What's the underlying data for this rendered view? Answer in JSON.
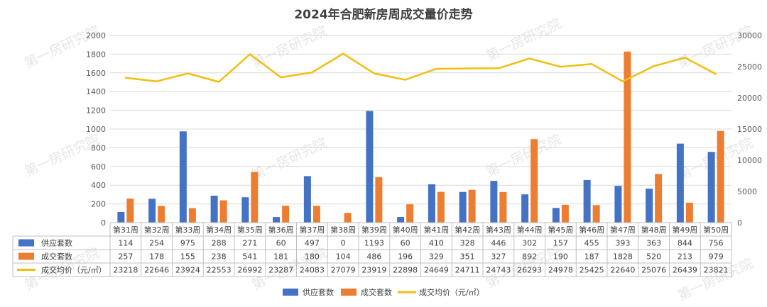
{
  "chart_data": {
    "type": "bar",
    "title": "2024年合肥新房周成交量价走势",
    "categories": [
      "第31周",
      "第32周",
      "第33周",
      "第34周",
      "第35周",
      "第36周",
      "第37周",
      "第38周",
      "第39周",
      "第40周",
      "第41周",
      "第42周",
      "第43周",
      "第44周",
      "第45周",
      "第46周",
      "第47周",
      "第48周",
      "第49周",
      "第50周"
    ],
    "series": [
      {
        "name": "供应套数",
        "kind": "bar",
        "axis": "left",
        "color": "#4472C4",
        "values": [
          114,
          254,
          975,
          288,
          271,
          60,
          497,
          0,
          1193,
          60,
          410,
          328,
          446,
          302,
          157,
          455,
          393,
          363,
          844,
          756
        ]
      },
      {
        "name": "成交套数",
        "kind": "bar",
        "axis": "left",
        "color": "#ED7D31",
        "values": [
          257,
          178,
          155,
          238,
          541,
          181,
          180,
          104,
          486,
          196,
          329,
          351,
          327,
          892,
          190,
          187,
          1828,
          520,
          213,
          979
        ]
      },
      {
        "name": "成交均价（元/㎡）",
        "kind": "line",
        "axis": "right",
        "color": "#F2BE0F",
        "values": [
          23218,
          22646,
          23924,
          22553,
          26992,
          23287,
          24083,
          27079,
          23919,
          22898,
          24649,
          24711,
          24743,
          26293,
          24978,
          25425,
          22640,
          25076,
          26439,
          23821
        ]
      }
    ],
    "ylim_left": [
      0,
      2000
    ],
    "ylim_right": [
      0,
      30000
    ],
    "yticks_left": [
      "0",
      "200",
      "400",
      "600",
      "800",
      "1000",
      "1200",
      "1400",
      "1600",
      "1800",
      "2000"
    ],
    "yticks_right": [
      "0",
      "5000",
      "10000",
      "15000",
      "20000",
      "25000",
      "30000"
    ],
    "data_table": true,
    "legend_position": "bottom",
    "grid": true,
    "watermark": "第一房研究院"
  }
}
